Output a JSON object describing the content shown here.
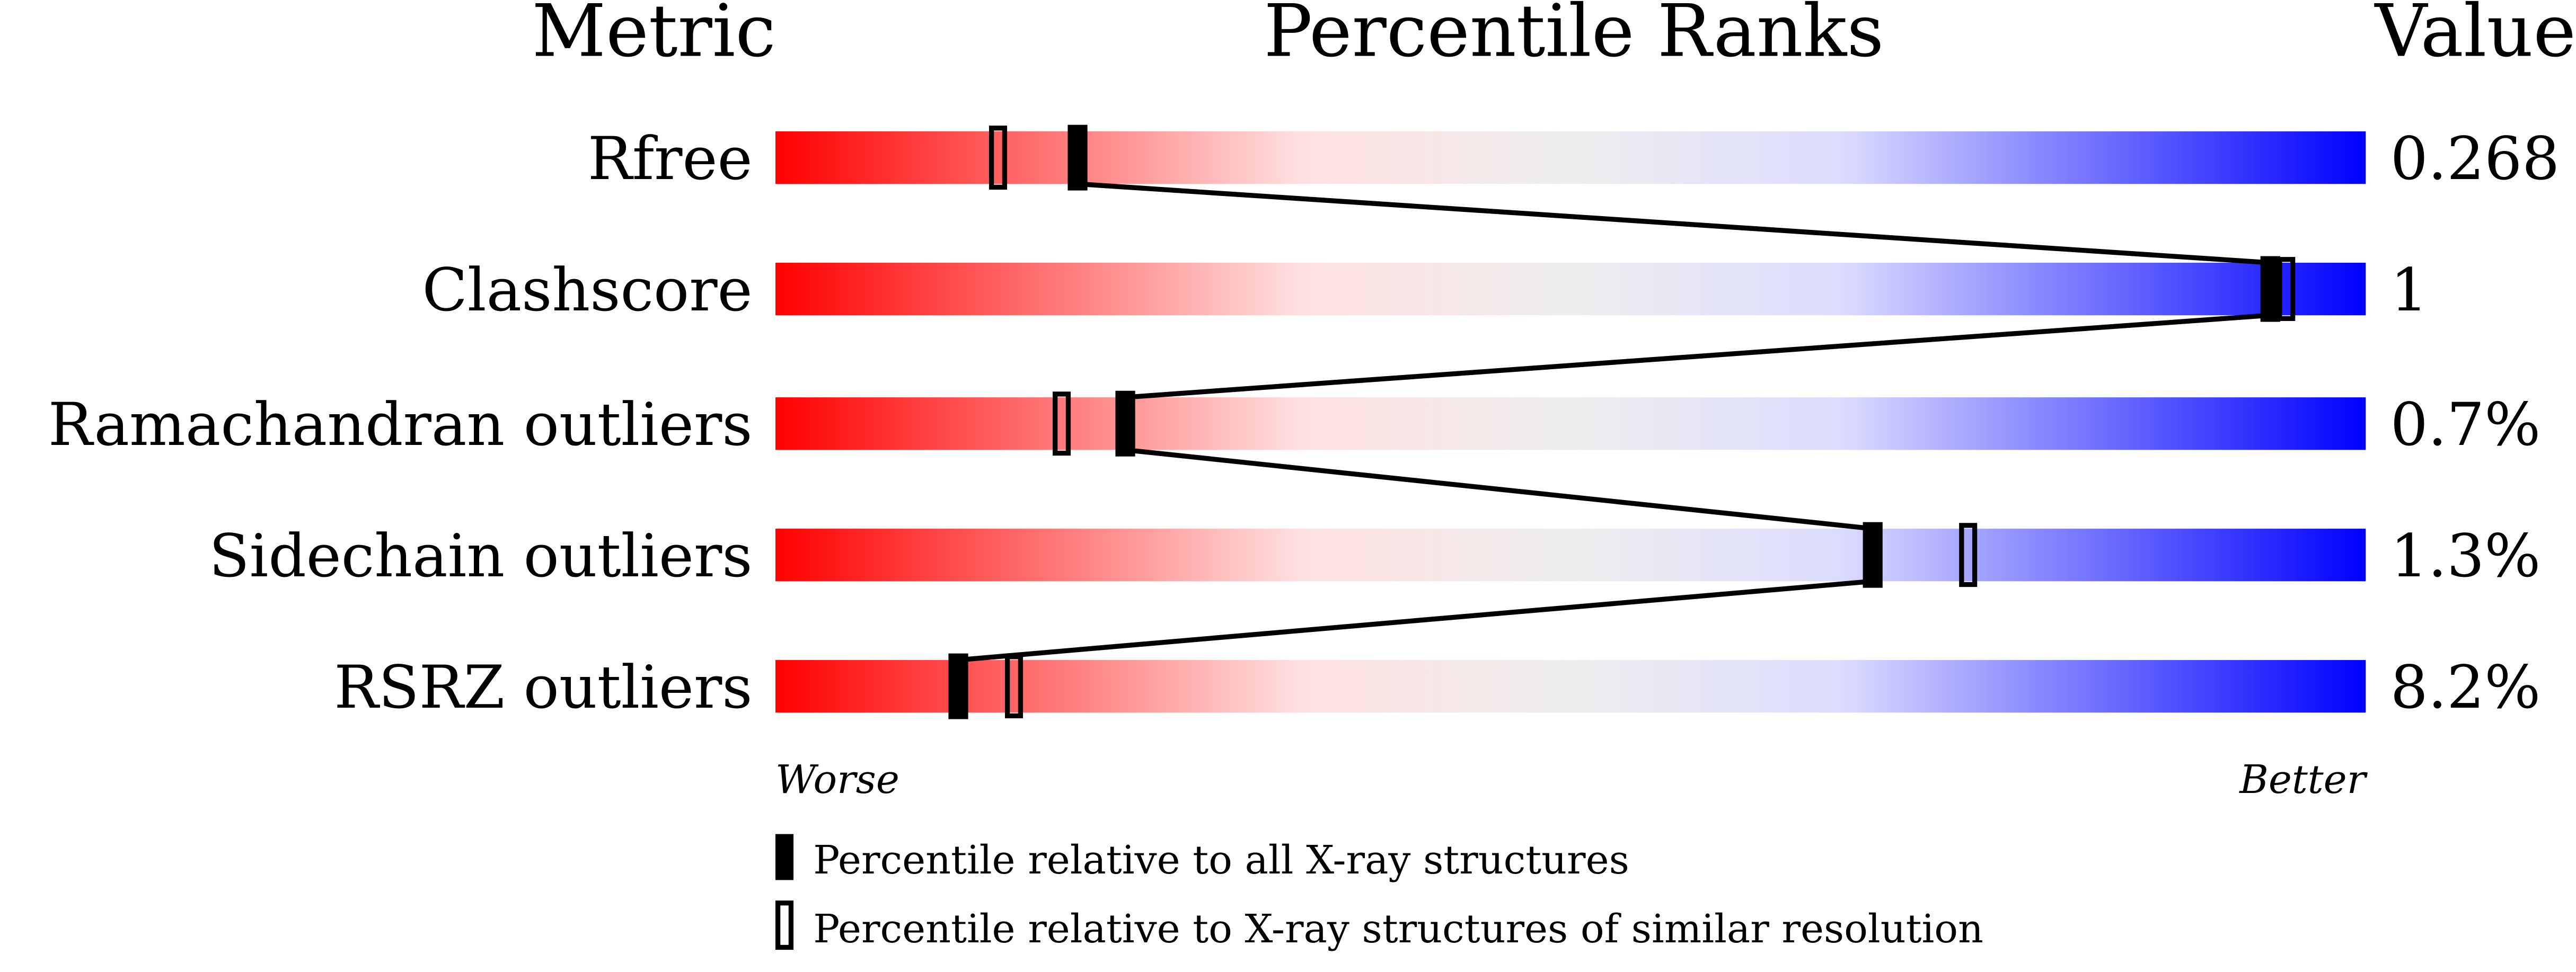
{
  "chart_data": {
    "type": "percentile-bar",
    "headers": {
      "metric": "Metric",
      "ranks": "Percentile Ranks",
      "value": "Value"
    },
    "xlim": [
      0,
      100
    ],
    "axis_labels": {
      "left": "Worse",
      "right": "Better"
    },
    "gradient_colors": [
      "#ff0000",
      "#ffe0e0",
      "#eeeeee",
      "#dcdcff",
      "#0000ff"
    ],
    "metrics": [
      {
        "name": "Rfree",
        "value": "0.268",
        "percentile_all": 19,
        "percentile_similar": 14
      },
      {
        "name": "Clashscore",
        "value": "1",
        "percentile_all": 94,
        "percentile_similar": 95
      },
      {
        "name": "Ramachandran outliers",
        "value": "0.7%",
        "percentile_all": 22,
        "percentile_similar": 18
      },
      {
        "name": "Sidechain outliers",
        "value": "1.3%",
        "percentile_all": 69,
        "percentile_similar": 75
      },
      {
        "name": "RSRZ outliers",
        "value": "8.2%",
        "percentile_all": 11.5,
        "percentile_similar": 15
      }
    ],
    "legend": [
      {
        "marker": "filled",
        "label": "Percentile relative to all X-ray structures"
      },
      {
        "marker": "open",
        "label": "Percentile relative to X-ray structures of similar resolution"
      }
    ]
  }
}
